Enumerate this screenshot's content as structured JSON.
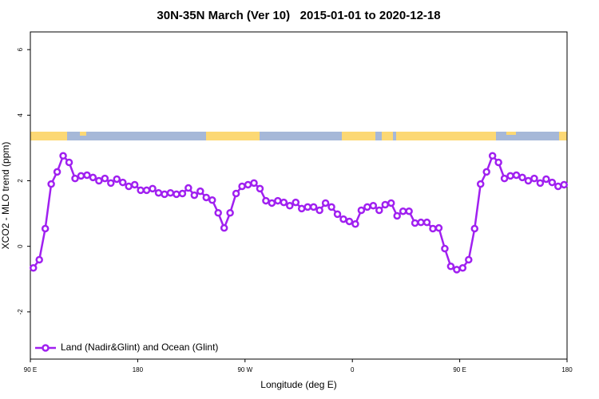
{
  "chart_data": {
    "type": "line",
    "title": "30N-35N March (Ver 10)   2015-01-01 to 2020-12-18",
    "x_label": "Longitude (deg E)",
    "y_label": "XCO2 - MLO trend (ppm)",
    "xlim": [
      90,
      540
    ],
    "ylim": [
      -3.44,
      6.54
    ],
    "xticks": [
      {
        "value": 90,
        "label": "90 E"
      },
      180,
      {
        "value": 270,
        "label": "90 W"
      },
      {
        "value": 360,
        "label": "0"
      },
      {
        "value": 450,
        "label": "90 E"
      },
      {
        "value": 540,
        "label": "180"
      }
    ],
    "yticks": [
      -2,
      0,
      2,
      4,
      6
    ],
    "legend": "bottom-left",
    "x": [
      92.5,
      97.5,
      102.5,
      107.5,
      112.5,
      117.5,
      122.5,
      127.5,
      132.5,
      137.5,
      142.5,
      147.5,
      152.5,
      157.5,
      162.5,
      167.5,
      172.5,
      177.5,
      182.5,
      187.5,
      192.5,
      197.5,
      202.5,
      207.5,
      212.5,
      217.5,
      222.5,
      227.5,
      232.5,
      237.5,
      242.5,
      247.5,
      252.5,
      257.5,
      262.5,
      267.5,
      272.5,
      277.5,
      282.5,
      287.5,
      292.5,
      297.5,
      302.5,
      307.5,
      312.5,
      317.5,
      322.5,
      327.5,
      332.5,
      337.5,
      342.5,
      347.5,
      352.5,
      357.5,
      362.5,
      367.5,
      372.5,
      377.5,
      382.5,
      387.5,
      392.5,
      397.5,
      402.5,
      407.5,
      412.5,
      417.5,
      422.5,
      427.5,
      432.5,
      437.5,
      442.5,
      447.5,
      452.5,
      457.5,
      462.5,
      467.5,
      472.5,
      477.5,
      482.5,
      487.5,
      492.5,
      497.5,
      502.5,
      507.5,
      512.5,
      517.5,
      522.5,
      527.5,
      532.5,
      537.5
    ],
    "series": [
      {
        "name": "Land (Nadir&Glint) and Ocean (Glint)",
        "color": "#a020f0",
        "values": [
          -0.66,
          -0.41,
          0.54,
          1.9,
          2.27,
          2.76,
          2.56,
          2.07,
          2.15,
          2.17,
          2.1,
          2.0,
          2.07,
          1.93,
          2.05,
          1.95,
          1.83,
          1.88,
          1.71,
          1.71,
          1.76,
          1.63,
          1.59,
          1.63,
          1.59,
          1.61,
          1.78,
          1.56,
          1.68,
          1.49,
          1.41,
          1.02,
          0.56,
          1.02,
          1.61,
          1.83,
          1.88,
          1.93,
          1.76,
          1.39,
          1.32,
          1.39,
          1.34,
          1.24,
          1.34,
          1.15,
          1.2,
          1.2,
          1.1,
          1.32,
          1.2,
          0.98,
          0.83,
          0.76,
          0.68,
          1.1,
          1.2,
          1.24,
          1.1,
          1.27,
          1.32,
          0.93,
          1.07,
          1.07,
          0.71,
          0.73,
          0.73,
          0.54,
          0.56,
          -0.07,
          -0.61,
          -0.71,
          -0.66,
          -0.41,
          0.54,
          1.9,
          2.27,
          2.76,
          2.56,
          2.07,
          2.15,
          2.17,
          2.1,
          2.0,
          2.07,
          1.93,
          2.05,
          1.95,
          1.83,
          1.88
        ]
      }
    ]
  }
}
